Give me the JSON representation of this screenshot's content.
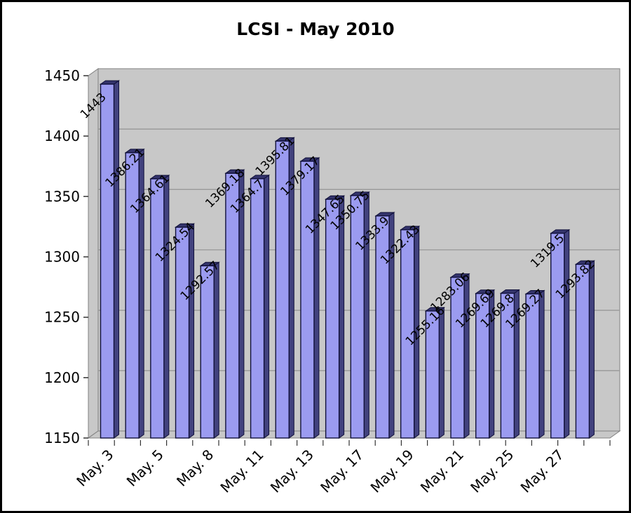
{
  "title": "LCSI - May 2010",
  "chart_data": {
    "type": "bar",
    "style": "3d-column",
    "title": "LCSI - May 2010",
    "xlabel": "",
    "ylabel": "",
    "y_axis": {
      "min": 1150,
      "max": 1450,
      "tick_interval": 50,
      "ticks": [
        "1450",
        "1400",
        "1350",
        "1300",
        "1250",
        "1200",
        "1150"
      ]
    },
    "grid": "horizontal",
    "legend": "none",
    "categories": [
      "May. 3",
      "May. 5",
      "May. 8",
      "May. 11",
      "May. 13",
      "May. 17",
      "May. 19",
      "May. 21",
      "May. 25",
      "May. 27"
    ],
    "category_label_every_n_bars": 2,
    "values": [
      1443,
      1386.21,
      1364.61,
      1324.54,
      1292.57,
      1369.18,
      1364.7,
      1395.81,
      1379.17,
      1347.65,
      1350.75,
      1333.9,
      1322.43,
      1255.16,
      1283.06,
      1269.69,
      1269.8,
      1269.27,
      1319.5,
      1293.82
    ],
    "value_labels": [
      "1443",
      "1386.21",
      "1364.61",
      "1324.54",
      "1292.57",
      "1369.18",
      "1364.7",
      "1395.81",
      "1379.17",
      "1347.65",
      "1350.75",
      "1333.9",
      "1322.43",
      "1255.16",
      "1283.06",
      "1269.69",
      "1269.8",
      "1269.27",
      "1319.5",
      "1293.82"
    ],
    "value_label_rotation_deg": -45,
    "x_label_rotation_deg": -45
  },
  "colors": {
    "background": "#ffffff",
    "frame_border": "#000000",
    "wall_fill": "#c8c8c8",
    "wall_edge": "#808080",
    "gridline": "#999999",
    "bar_front": "#9b9bf0",
    "bar_side": "#42427e",
    "bar_top": "#34346c",
    "bar_outline": "#10103a",
    "text": "#000000",
    "tick": "#333333"
  }
}
